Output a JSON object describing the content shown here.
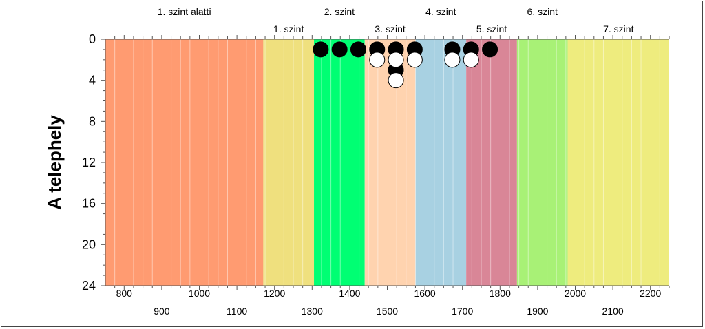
{
  "chart_data": {
    "type": "scatter",
    "ylabel": "A telephely",
    "xlim": [
      750,
      2250
    ],
    "ylim": [
      0,
      24
    ],
    "y_inverted": true,
    "x_ticks": [
      800,
      900,
      1000,
      1100,
      1200,
      1300,
      1400,
      1500,
      1600,
      1700,
      1800,
      1900,
      2000,
      2100,
      2200
    ],
    "y_ticks": [
      0,
      4,
      8,
      12,
      16,
      20,
      24
    ],
    "x_minor_gridlines": true,
    "levels": [
      {
        "label": "1. szint alatti",
        "from": 750,
        "to": 1170,
        "color": "#FF9B71",
        "label_row": "top"
      },
      {
        "label": "1. szint",
        "from": 1170,
        "to": 1305,
        "color": "#EFE07E",
        "label_row": "bottom"
      },
      {
        "label": "2. szint",
        "from": 1305,
        "to": 1440,
        "color": "#00FF73",
        "label_row": "top"
      },
      {
        "label": "3. szint",
        "from": 1440,
        "to": 1575,
        "color": "#FFD3AF",
        "label_row": "bottom"
      },
      {
        "label": "4. szint",
        "from": 1575,
        "to": 1710,
        "color": "#A8D1E2",
        "label_row": "top"
      },
      {
        "label": "5. szint",
        "from": 1710,
        "to": 1845,
        "color": "#D98697",
        "label_row": "bottom"
      },
      {
        "label": "6. szint",
        "from": 1845,
        "to": 1980,
        "color": "#A8F176",
        "label_row": "top"
      },
      {
        "label": "7. szint",
        "from": 1980,
        "to": 2250,
        "color": "#EEEC7E",
        "label_row": "bottom"
      }
    ],
    "series": [
      {
        "marker": "filled-circle",
        "color": "#000000",
        "points": [
          {
            "x": 1323,
            "y": 1
          },
          {
            "x": 1373,
            "y": 1
          },
          {
            "x": 1423,
            "y": 1
          },
          {
            "x": 1473,
            "y": 1
          },
          {
            "x": 1523,
            "y": 1
          },
          {
            "x": 1573,
            "y": 1
          },
          {
            "x": 1673,
            "y": 1
          },
          {
            "x": 1723,
            "y": 1
          },
          {
            "x": 1773,
            "y": 1
          },
          {
            "x": 1523,
            "y": 3
          }
        ]
      },
      {
        "marker": "open-circle",
        "color": "#000000",
        "points": [
          {
            "x": 1473,
            "y": 2
          },
          {
            "x": 1523,
            "y": 2
          },
          {
            "x": 1573,
            "y": 2
          },
          {
            "x": 1673,
            "y": 2
          },
          {
            "x": 1723,
            "y": 2
          },
          {
            "x": 1523,
            "y": 4
          }
        ]
      }
    ]
  }
}
